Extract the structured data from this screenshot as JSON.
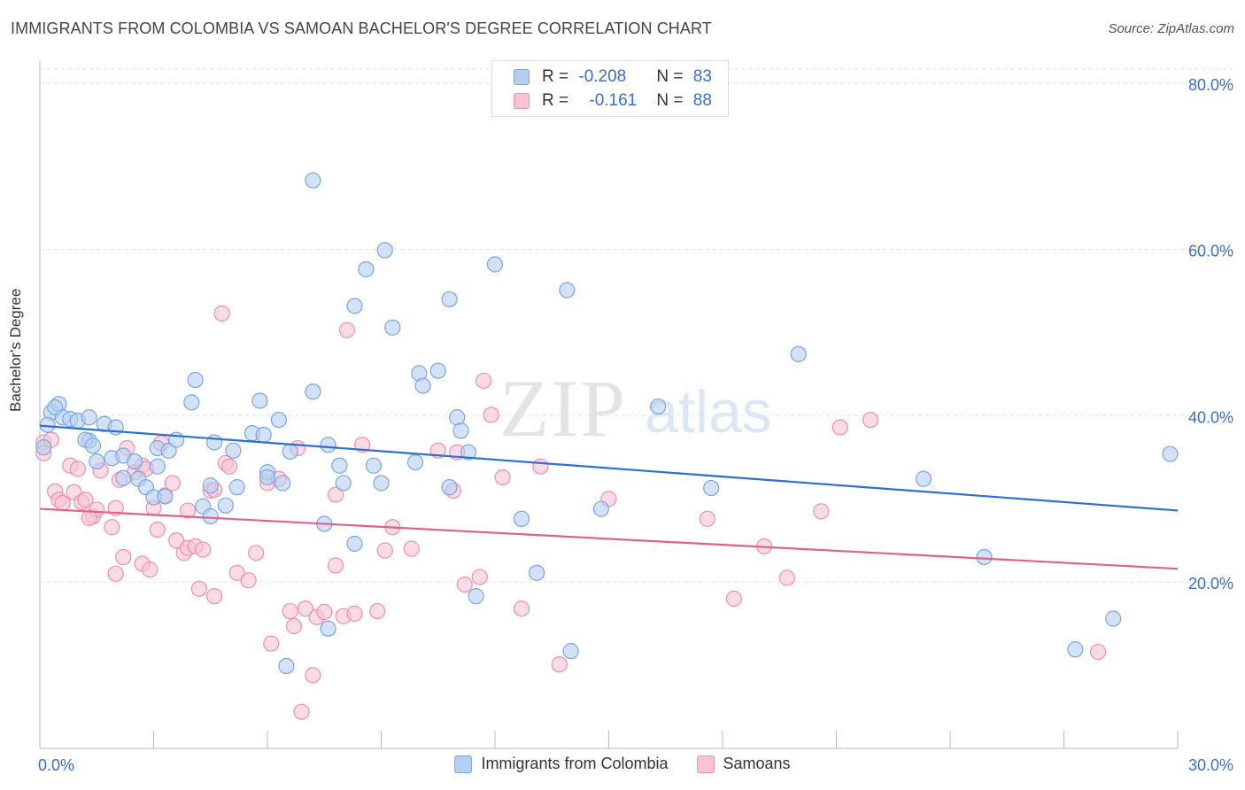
{
  "title": "IMMIGRANTS FROM COLOMBIA VS SAMOAN BACHELOR'S DEGREE CORRELATION CHART",
  "source": "Source: ZipAtlas.com",
  "watermark": {
    "zip": "ZIP",
    "atlas": "atlas"
  },
  "legend": {
    "series1": {
      "r_label": "R = ",
      "r_value": "-0.208",
      "n_label": "N = ",
      "n_value": "83"
    },
    "series2": {
      "r_label": "R = ",
      "r_value": "-0.161",
      "n_label": "N = ",
      "n_value": "88"
    }
  },
  "colors": {
    "blue_fill": "#b5cff2",
    "blue_stroke": "#7aa6e0",
    "blue_line": "#2e6fd0",
    "pink_fill": "#f8c3d4",
    "pink_stroke": "#ee8fae",
    "pink_line": "#e0618e",
    "axis_text": "#3a6fc4",
    "grid": "#e0e0e0"
  },
  "chart_data": {
    "type": "scatter",
    "title": "IMMIGRANTS FROM COLOMBIA VS SAMOAN BACHELOR'S DEGREE CORRELATION CHART",
    "xlabel": "",
    "ylabel": "Bachelor's Degree",
    "xlim": [
      0,
      30
    ],
    "ylim": [
      0,
      82
    ],
    "x_tick_labels": [
      "0.0%",
      "30.0%"
    ],
    "y_ticks": [
      20,
      40,
      60,
      80
    ],
    "y_tick_labels": [
      "20.0%",
      "40.0%",
      "60.0%",
      "80.0%"
    ],
    "series": [
      {
        "name": "Immigrants from Colombia",
        "trend": [
          [
            0,
            38.8
          ],
          [
            30,
            28.6
          ]
        ],
        "points": [
          [
            0.1,
            36.2
          ],
          [
            0.3,
            40.4
          ],
          [
            0.5,
            41.4
          ],
          [
            0.6,
            39.8
          ],
          [
            0.8,
            39.6
          ],
          [
            1.0,
            39.4
          ],
          [
            1.3,
            39.8
          ],
          [
            1.7,
            39.0
          ],
          [
            1.3,
            37.0
          ],
          [
            1.2,
            37.1
          ],
          [
            1.4,
            36.4
          ],
          [
            2.0,
            38.6
          ],
          [
            1.5,
            34.5
          ],
          [
            1.9,
            34.9
          ],
          [
            2.2,
            35.2
          ],
          [
            2.5,
            34.5
          ],
          [
            2.6,
            32.4
          ],
          [
            2.8,
            31.4
          ],
          [
            3.1,
            36.1
          ],
          [
            3.4,
            35.8
          ],
          [
            3.6,
            37.1
          ],
          [
            3.1,
            33.9
          ],
          [
            3.0,
            30.2
          ],
          [
            4.1,
            44.3
          ],
          [
            4.0,
            41.6
          ],
          [
            4.5,
            31.6
          ],
          [
            4.3,
            29.1
          ],
          [
            4.5,
            27.9
          ],
          [
            4.9,
            29.2
          ],
          [
            5.1,
            35.8
          ],
          [
            5.6,
            37.9
          ],
          [
            5.8,
            41.8
          ],
          [
            5.9,
            37.7
          ],
          [
            6.0,
            33.2
          ],
          [
            6.0,
            32.6
          ],
          [
            6.4,
            31.9
          ],
          [
            6.6,
            35.7
          ],
          [
            6.3,
            39.5
          ],
          [
            7.2,
            42.9
          ],
          [
            7.6,
            36.5
          ],
          [
            7.9,
            34.0
          ],
          [
            7.5,
            27.0
          ],
          [
            8.0,
            31.9
          ],
          [
            8.3,
            24.6
          ],
          [
            8.3,
            53.2
          ],
          [
            8.6,
            57.6
          ],
          [
            8.8,
            34.0
          ],
          [
            9.1,
            59.9
          ],
          [
            9.3,
            50.6
          ],
          [
            9.9,
            34.4
          ],
          [
            10.0,
            45.1
          ],
          [
            10.1,
            43.6
          ],
          [
            10.5,
            45.4
          ],
          [
            10.8,
            54.0
          ],
          [
            11.0,
            39.8
          ],
          [
            11.1,
            38.2
          ],
          [
            11.3,
            35.6
          ],
          [
            11.5,
            18.3
          ],
          [
            7.2,
            68.3
          ],
          [
            7.6,
            14.4
          ],
          [
            6.5,
            9.9
          ],
          [
            10.8,
            31.4
          ],
          [
            12.0,
            58.2
          ],
          [
            12.7,
            27.6
          ],
          [
            13.1,
            21.1
          ],
          [
            13.9,
            55.1
          ],
          [
            14.0,
            11.7
          ],
          [
            14.8,
            28.8
          ],
          [
            16.3,
            41.1
          ],
          [
            17.7,
            31.3
          ],
          [
            20.0,
            47.4
          ],
          [
            23.3,
            32.4
          ],
          [
            24.9,
            23.0
          ],
          [
            27.3,
            11.9
          ],
          [
            28.3,
            15.6
          ],
          [
            29.8,
            35.4
          ],
          [
            0.2,
            38.9
          ],
          [
            2.2,
            32.5
          ],
          [
            5.2,
            31.4
          ],
          [
            9.0,
            31.9
          ],
          [
            3.3,
            30.3
          ],
          [
            4.6,
            36.8
          ],
          [
            0.4,
            41.0
          ]
        ]
      },
      {
        "name": "Samoans",
        "trend": [
          [
            0,
            28.8
          ],
          [
            30,
            21.6
          ]
        ],
        "points": [
          [
            0.1,
            36.8
          ],
          [
            0.1,
            35.5
          ],
          [
            0.4,
            30.9
          ],
          [
            0.5,
            29.9
          ],
          [
            0.6,
            29.5
          ],
          [
            0.8,
            34.0
          ],
          [
            0.9,
            30.8
          ],
          [
            1.0,
            33.6
          ],
          [
            1.1,
            29.6
          ],
          [
            1.2,
            29.9
          ],
          [
            1.4,
            27.9
          ],
          [
            1.5,
            28.7
          ],
          [
            1.6,
            33.4
          ],
          [
            1.9,
            26.6
          ],
          [
            2.0,
            21.0
          ],
          [
            2.0,
            28.9
          ],
          [
            2.1,
            32.3
          ],
          [
            2.2,
            23.0
          ],
          [
            2.3,
            36.1
          ],
          [
            2.5,
            33.2
          ],
          [
            2.7,
            34.0
          ],
          [
            2.7,
            22.2
          ],
          [
            2.9,
            21.5
          ],
          [
            3.0,
            28.9
          ],
          [
            3.1,
            26.3
          ],
          [
            3.2,
            36.7
          ],
          [
            3.3,
            30.4
          ],
          [
            3.5,
            31.9
          ],
          [
            3.6,
            25.0
          ],
          [
            3.8,
            23.5
          ],
          [
            3.9,
            24.1
          ],
          [
            3.9,
            28.6
          ],
          [
            4.1,
            24.3
          ],
          [
            4.2,
            19.2
          ],
          [
            4.3,
            23.9
          ],
          [
            4.5,
            31.0
          ],
          [
            4.6,
            18.3
          ],
          [
            4.8,
            52.3
          ],
          [
            4.9,
            34.3
          ],
          [
            5.0,
            33.9
          ],
          [
            5.2,
            21.1
          ],
          [
            5.5,
            20.2
          ],
          [
            5.7,
            23.5
          ],
          [
            6.1,
            12.6
          ],
          [
            6.0,
            31.9
          ],
          [
            6.3,
            32.4
          ],
          [
            6.6,
            16.5
          ],
          [
            6.8,
            36.1
          ],
          [
            6.7,
            14.7
          ],
          [
            6.9,
            4.4
          ],
          [
            7.0,
            16.8
          ],
          [
            7.2,
            8.8
          ],
          [
            7.3,
            15.8
          ],
          [
            7.5,
            16.4
          ],
          [
            7.8,
            22.0
          ],
          [
            7.8,
            30.5
          ],
          [
            8.0,
            15.9
          ],
          [
            8.3,
            16.2
          ],
          [
            8.1,
            50.3
          ],
          [
            8.5,
            36.5
          ],
          [
            8.9,
            16.5
          ],
          [
            9.1,
            23.8
          ],
          [
            9.3,
            26.6
          ],
          [
            9.8,
            24.0
          ],
          [
            10.5,
            35.8
          ],
          [
            10.9,
            31.0
          ],
          [
            11.2,
            19.7
          ],
          [
            11.6,
            20.6
          ],
          [
            11.7,
            44.2
          ],
          [
            11.9,
            40.1
          ],
          [
            12.2,
            32.6
          ],
          [
            12.7,
            16.8
          ],
          [
            13.2,
            33.9
          ],
          [
            13.7,
            10.1
          ],
          [
            15.0,
            30.0
          ],
          [
            17.6,
            27.6
          ],
          [
            18.3,
            18.0
          ],
          [
            19.1,
            24.3
          ],
          [
            19.7,
            20.5
          ],
          [
            20.6,
            28.5
          ],
          [
            21.1,
            38.6
          ],
          [
            21.9,
            39.5
          ],
          [
            27.9,
            11.6
          ],
          [
            0.3,
            37.1
          ],
          [
            1.3,
            27.7
          ],
          [
            2.8,
            33.6
          ],
          [
            4.6,
            31.1
          ],
          [
            11.0,
            35.6
          ]
        ]
      }
    ]
  },
  "bottom_legend": [
    "Immigrants from Colombia",
    "Samoans"
  ]
}
